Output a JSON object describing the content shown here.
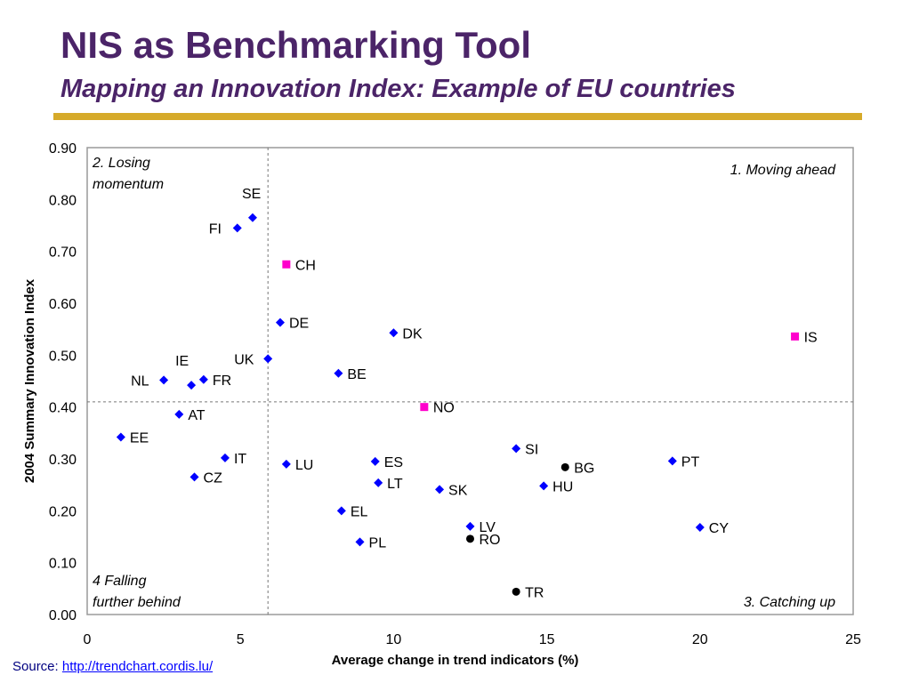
{
  "slide": {
    "title": "NIS as Benchmarking Tool",
    "subtitle": "Mapping an Innovation Index: Example of EU countries",
    "source_label": "Source:",
    "source_link": "http://trendchart.cordis.lu/"
  },
  "colors": {
    "title": "#4b2468",
    "rule": "#d6aa2a",
    "eu": "#0000ff",
    "non_eu": "#ff00cc",
    "candidate": "#000000"
  },
  "chart_data": {
    "type": "scatter",
    "xlabel": "Average change in trend indicators (%)",
    "ylabel": "2004 Summary Innovation Index",
    "xlim": [
      0,
      25
    ],
    "ylim": [
      0,
      0.9
    ],
    "xticks": [
      "0",
      "5",
      "10",
      "15",
      "20",
      "25"
    ],
    "yticks": [
      "0.00",
      "0.10",
      "0.20",
      "0.30",
      "0.40",
      "0.50",
      "0.60",
      "0.70",
      "0.80",
      "0.90"
    ],
    "reference_lines": {
      "x": 5.9,
      "y": 0.41
    },
    "quadrant_labels": [
      {
        "text": "2. Losing\nmomentum",
        "position": "top-left"
      },
      {
        "text": "1. Moving ahead",
        "position": "top-right"
      },
      {
        "text": "4 Falling\nfurther behind",
        "position": "bottom-left"
      },
      {
        "text": "3. Catching up",
        "position": "bottom-right"
      }
    ],
    "series": [
      {
        "group": "eu",
        "marker": "diamond",
        "points": [
          {
            "label": "SE",
            "x": 5.4,
            "y": 0.765
          },
          {
            "label": "FI",
            "x": 4.9,
            "y": 0.745
          },
          {
            "label": "DE",
            "x": 6.3,
            "y": 0.563
          },
          {
            "label": "DK",
            "x": 10.0,
            "y": 0.543
          },
          {
            "label": "UK",
            "x": 5.9,
            "y": 0.493
          },
          {
            "label": "BE",
            "x": 8.2,
            "y": 0.465
          },
          {
            "label": "NL",
            "x": 2.5,
            "y": 0.452
          },
          {
            "label": "IE",
            "x": 3.4,
            "y": 0.442
          },
          {
            "label": "FR",
            "x": 3.8,
            "y": 0.453
          },
          {
            "label": "AT",
            "x": 3.0,
            "y": 0.386
          },
          {
            "label": "EE",
            "x": 1.1,
            "y": 0.342
          },
          {
            "label": "IT",
            "x": 4.5,
            "y": 0.302
          },
          {
            "label": "CZ",
            "x": 3.5,
            "y": 0.265
          },
          {
            "label": "LU",
            "x": 6.5,
            "y": 0.29
          },
          {
            "label": "ES",
            "x": 9.4,
            "y": 0.295
          },
          {
            "label": "LT",
            "x": 9.5,
            "y": 0.254
          },
          {
            "label": "SK",
            "x": 11.5,
            "y": 0.241
          },
          {
            "label": "SI",
            "x": 14.0,
            "y": 0.32
          },
          {
            "label": "HU",
            "x": 14.9,
            "y": 0.248
          },
          {
            "label": "PT",
            "x": 19.1,
            "y": 0.296
          },
          {
            "label": "EL",
            "x": 8.3,
            "y": 0.2
          },
          {
            "label": "PL",
            "x": 8.9,
            "y": 0.14
          },
          {
            "label": "LV",
            "x": 12.5,
            "y": 0.17
          },
          {
            "label": "CY",
            "x": 20.0,
            "y": 0.168
          }
        ]
      },
      {
        "group": "non_eu",
        "marker": "square",
        "points": [
          {
            "label": "CH",
            "x": 6.5,
            "y": 0.675
          },
          {
            "label": "IS",
            "x": 23.1,
            "y": 0.536
          },
          {
            "label": "NO",
            "x": 11.0,
            "y": 0.4
          }
        ]
      },
      {
        "group": "candidate",
        "marker": "circle",
        "points": [
          {
            "label": "BG",
            "x": 15.6,
            "y": 0.284
          },
          {
            "label": "RO",
            "x": 12.5,
            "y": 0.146
          },
          {
            "label": "TR",
            "x": 14.0,
            "y": 0.044
          }
        ]
      }
    ]
  }
}
